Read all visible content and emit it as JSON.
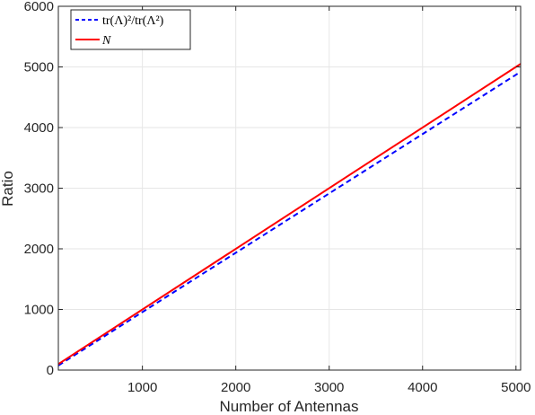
{
  "chart_data": {
    "type": "line",
    "title": "",
    "xlabel": "Number of Antennas",
    "ylabel": "Ratio",
    "xlim": [
      100,
      5050
    ],
    "ylim": [
      0,
      6000
    ],
    "xticks": [
      1000,
      2000,
      3000,
      4000,
      5000
    ],
    "xtick_labels": [
      "1000",
      "2000",
      "3000",
      "4000",
      "5000"
    ],
    "yticks": [
      0,
      1000,
      2000,
      3000,
      4000,
      5000,
      6000
    ],
    "ytick_labels": [
      "0",
      "1000",
      "2000",
      "3000",
      "4000",
      "5000",
      "6000"
    ],
    "grid": true,
    "legend_position": "top-left",
    "series": [
      {
        "name": "tr(Λ)²/tr(Λ²)",
        "color": "#0000ff",
        "style": "dashed",
        "x": [
          100,
          5050
        ],
        "y": [
          75,
          4920
        ]
      },
      {
        "name": "N",
        "color": "#ff0000",
        "style": "solid",
        "x": [
          100,
          5050
        ],
        "y": [
          100,
          5050
        ]
      }
    ]
  }
}
